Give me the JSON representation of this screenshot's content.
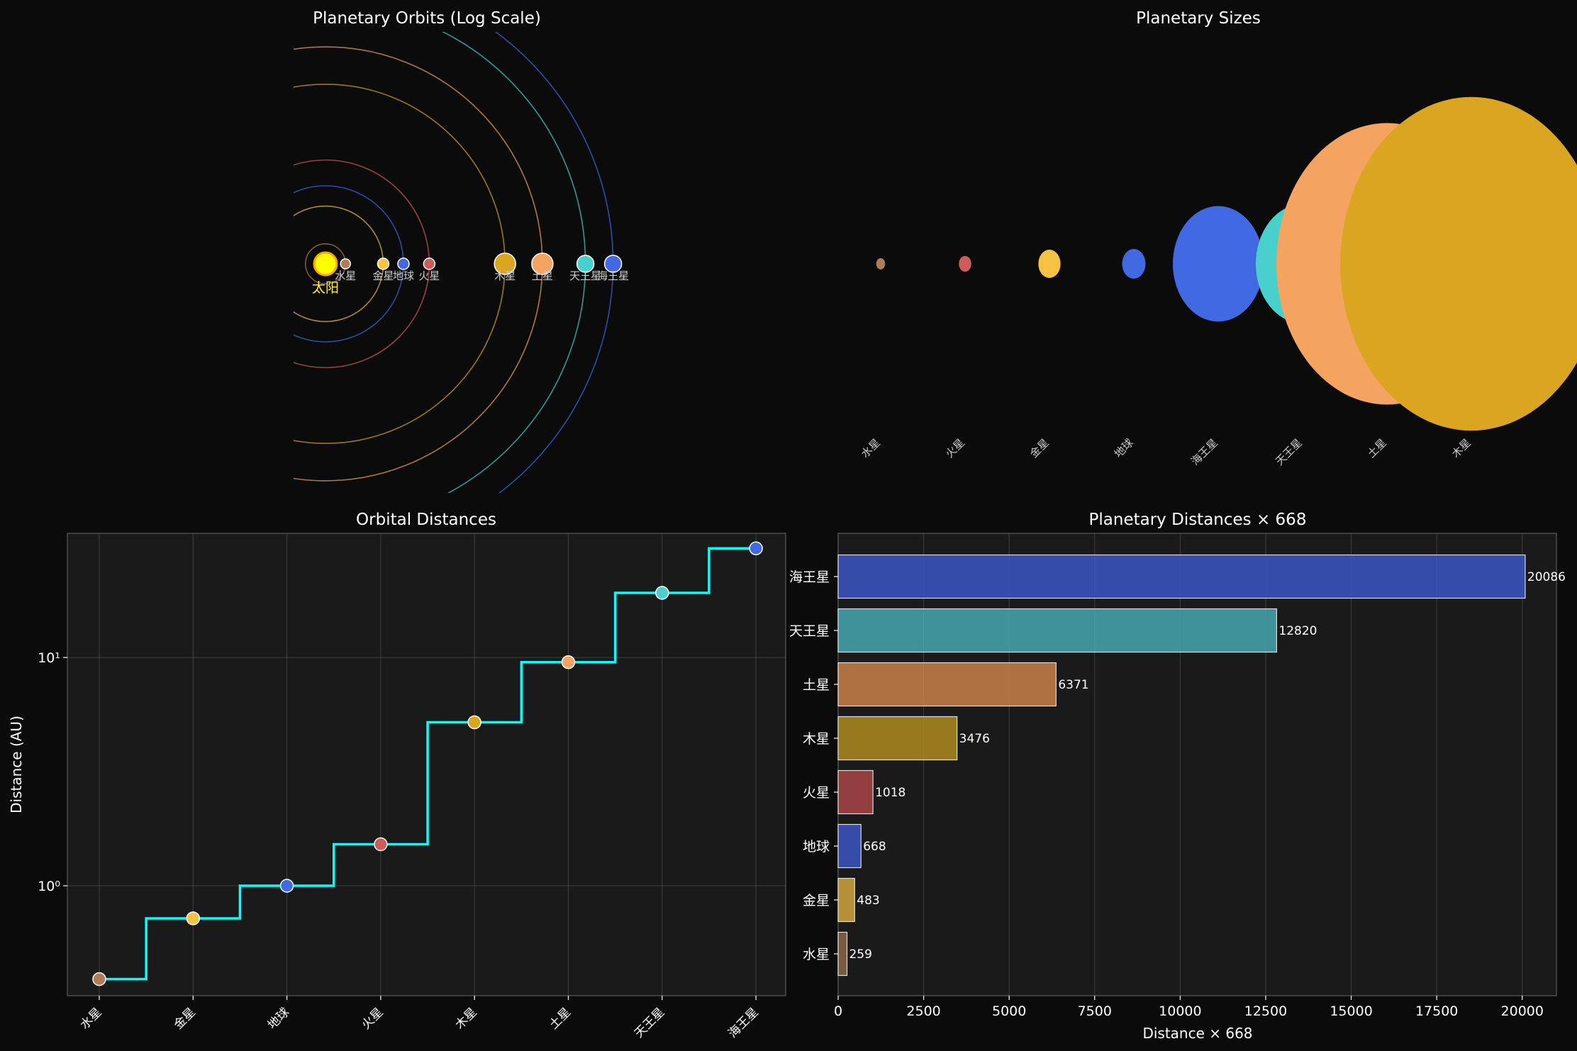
{
  "colors": {
    "background": "#0b0b0b",
    "axes_face": "#1a1a1a",
    "step_line": "#00ffff",
    "sun": "#ffff00"
  },
  "chart_data": [
    {
      "type": "scatter",
      "title": "Planetary Orbits (Log Scale)",
      "axis": "off",
      "sun_label": "太阳",
      "planets": [
        {
          "name": "水星",
          "distance_au": 0.39,
          "color": "#b07b57"
        },
        {
          "name": "金星",
          "distance_au": 0.72,
          "color": "#f5c242"
        },
        {
          "name": "地球",
          "distance_au": 1.0,
          "color": "#4169e1"
        },
        {
          "name": "火星",
          "distance_au": 1.52,
          "color": "#cd5c5c"
        },
        {
          "name": "木星",
          "distance_au": 5.2,
          "color": "#daa520"
        },
        {
          "name": "土星",
          "distance_au": 9.54,
          "color": "#f4a460"
        },
        {
          "name": "天王星",
          "distance_au": 19.19,
          "color": "#48d1cc"
        },
        {
          "name": "海王星",
          "distance_au": 30.07,
          "color": "#4169e1"
        }
      ]
    },
    {
      "type": "scatter",
      "title": "Planetary Sizes",
      "axis": "off",
      "categories": [
        "水星",
        "火星",
        "金星",
        "地球",
        "海王星",
        "天王星",
        "土星",
        "木星"
      ],
      "relative_size": [
        0.38,
        0.53,
        0.95,
        1.0,
        3.88,
        4.0,
        9.45,
        11.2
      ],
      "colors": [
        "#b07b57",
        "#cd5c5c",
        "#f5c242",
        "#4169e1",
        "#4169e1",
        "#48d1cc",
        "#f4a460",
        "#daa520"
      ]
    },
    {
      "type": "line",
      "title": "Orbital Distances",
      "ylabel": "Distance (AU)",
      "yscale": "log",
      "ylim": [
        0.33,
        35
      ],
      "yticks": [
        {
          "value": 1,
          "label": "10⁰"
        },
        {
          "value": 10,
          "label": "10¹"
        }
      ],
      "grid": true,
      "categories": [
        "水星",
        "金星",
        "地球",
        "火星",
        "木星",
        "土星",
        "天王星",
        "海王星"
      ],
      "values": [
        0.39,
        0.72,
        1.0,
        1.52,
        5.2,
        9.54,
        19.19,
        30.07
      ],
      "colors": [
        "#b07b57",
        "#f5c242",
        "#4169e1",
        "#cd5c5c",
        "#daa520",
        "#f4a460",
        "#48d1cc",
        "#4169e1"
      ]
    },
    {
      "type": "bar",
      "orientation": "horizontal",
      "title": "Planetary Distances × 668",
      "xlabel": "Distance × 668",
      "xlim": [
        0,
        21000
      ],
      "xticks": [
        0,
        2500,
        5000,
        7500,
        10000,
        12500,
        15000,
        17500,
        20000
      ],
      "grid": true,
      "categories": [
        "海王星",
        "天王星",
        "土星",
        "木星",
        "火星",
        "地球",
        "金星",
        "水星"
      ],
      "values": [
        20086,
        12820,
        6371,
        3476,
        1018,
        668,
        483,
        259
      ],
      "colors": [
        "#3b55c4",
        "#45a8b0",
        "#c9804a",
        "#b08a1e",
        "#a84545",
        "#3b55c4",
        "#d1a53a",
        "#8a6648"
      ]
    }
  ]
}
